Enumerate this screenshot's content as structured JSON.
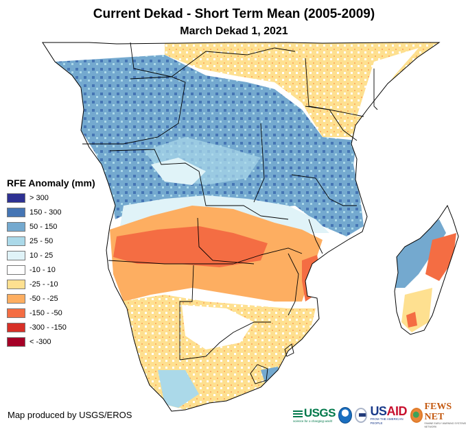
{
  "title": "Current Dekad - Short Term Mean (2005-2009)",
  "subtitle": "March Dekad 1, 2021",
  "legend": {
    "title": "RFE Anomaly (mm)",
    "items": [
      {
        "label": "> 300",
        "color": "#2e3192"
      },
      {
        "label": "150 - 300",
        "color": "#4575b4"
      },
      {
        "label": "50 - 150",
        "color": "#74a9cf"
      },
      {
        "label": "25 - 50",
        "color": "#abd9e9"
      },
      {
        "label": "10 - 25",
        "color": "#e0f3f8"
      },
      {
        "label": "-10 - 10",
        "color": "#ffffff"
      },
      {
        "label": "-25 - -10",
        "color": "#fee090"
      },
      {
        "label": "-50 - -25",
        "color": "#fdae61"
      },
      {
        "label": "-150 - -50",
        "color": "#f46d43"
      },
      {
        "label": "-300 - -150",
        "color": "#d73027"
      },
      {
        "label": "< -300",
        "color": "#a50026"
      }
    ]
  },
  "credit": "Map produced by USGS/EROS",
  "logos": {
    "usgs": "USGS",
    "usgs_tagline": "science for a changing world",
    "usaid_us": "US",
    "usaid_aid": "AID",
    "usaid_tagline": "FROM THE AMERICAN PEOPLE",
    "fews": "FEWS NET",
    "fews_tagline": "FAMINE EARLY WARNING SYSTEMS NETWORK"
  },
  "map": {
    "region": "Southern Africa",
    "patterns": [
      {
        "area": "Central Africa / Congo Basin",
        "class": "50 - 150"
      },
      {
        "area": "Angola / Zambia / Namibia border belt",
        "class": "-150 - -50"
      },
      {
        "area": "Kenya / Somalia",
        "class": "-25 - -10"
      },
      {
        "area": "Southern Africa interior",
        "class": "-25 - -10"
      },
      {
        "area": "Central Mozambique coast",
        "class": "-150 - -50"
      },
      {
        "area": "Northwest Madagascar",
        "class": "50 - 150"
      },
      {
        "area": "East Madagascar",
        "class": "-150 - -50"
      }
    ]
  }
}
